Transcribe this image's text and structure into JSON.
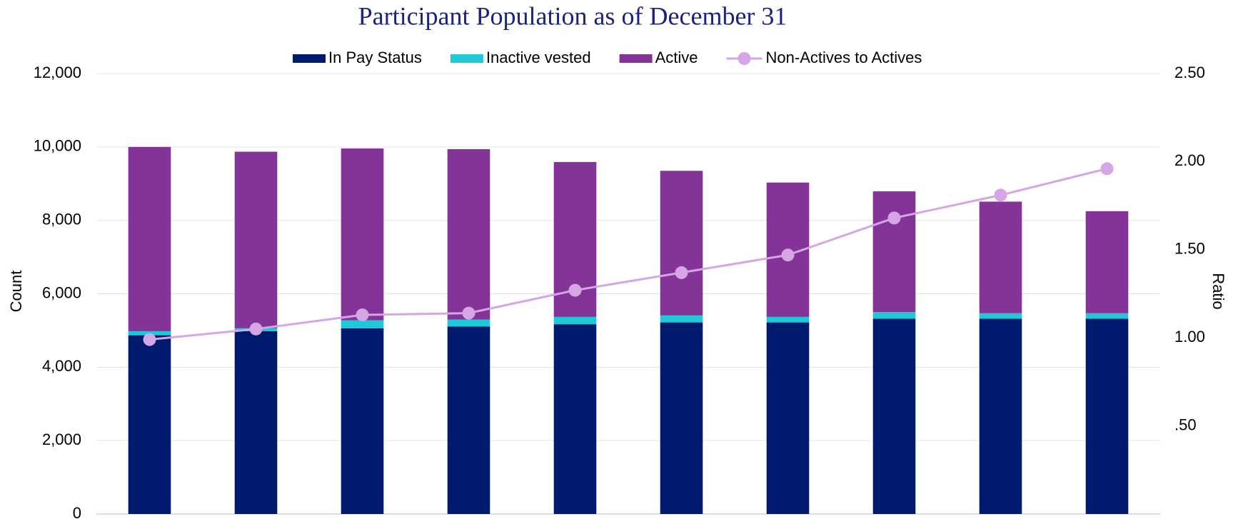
{
  "chart_data": {
    "type": "bar",
    "stacked": true,
    "title": "Participant Population as of December 31",
    "ylabel": "Count",
    "y2label": "Ratio",
    "categories": [
      null,
      null,
      null,
      null,
      null,
      null,
      null,
      null,
      null,
      null
    ],
    "series": [
      {
        "name": "In Pay Status",
        "color": "#001a6e",
        "values": [
          4870,
          4980,
          5060,
          5110,
          5170,
          5220,
          5220,
          5320,
          5320,
          5320
        ]
      },
      {
        "name": "Inactive vested",
        "color": "#1ec8d6",
        "values": [
          110,
          80,
          220,
          190,
          200,
          190,
          150,
          180,
          150,
          150
        ]
      },
      {
        "name": "Active",
        "color": "#843399",
        "values": [
          5020,
          4810,
          4680,
          4640,
          4220,
          3940,
          3660,
          3290,
          3040,
          2780
        ]
      },
      {
        "name": "Non-Actives to Actives",
        "color": "#d4a6e3",
        "axis": "y2",
        "values": [
          0.99,
          1.05,
          1.13,
          1.14,
          1.27,
          1.37,
          1.47,
          1.68,
          1.81,
          1.96
        ]
      }
    ],
    "ylim": [
      0,
      12000
    ],
    "yticks": [
      0,
      {
        "value": 2000,
        "label": "2,000"
      },
      {
        "value": 4000,
        "label": "4,000"
      },
      {
        "value": 6000,
        "label": "6,000"
      },
      {
        "value": 8000,
        "label": "8,000"
      },
      {
        "value": 10000,
        "label": "10,000"
      },
      {
        "value": 12000,
        "label": "12,000"
      }
    ],
    "y2lim": [
      0,
      2.5
    ],
    "y2ticks": [
      {
        "value": 0.5,
        "label": ".50"
      },
      {
        "value": 1,
        "label": "1.00"
      },
      {
        "value": 1.5,
        "label": "1.50"
      },
      {
        "value": 2,
        "label": "2.00"
      },
      {
        "value": 2.5,
        "label": "2.50"
      }
    ],
    "grid": true,
    "legend": "top"
  }
}
